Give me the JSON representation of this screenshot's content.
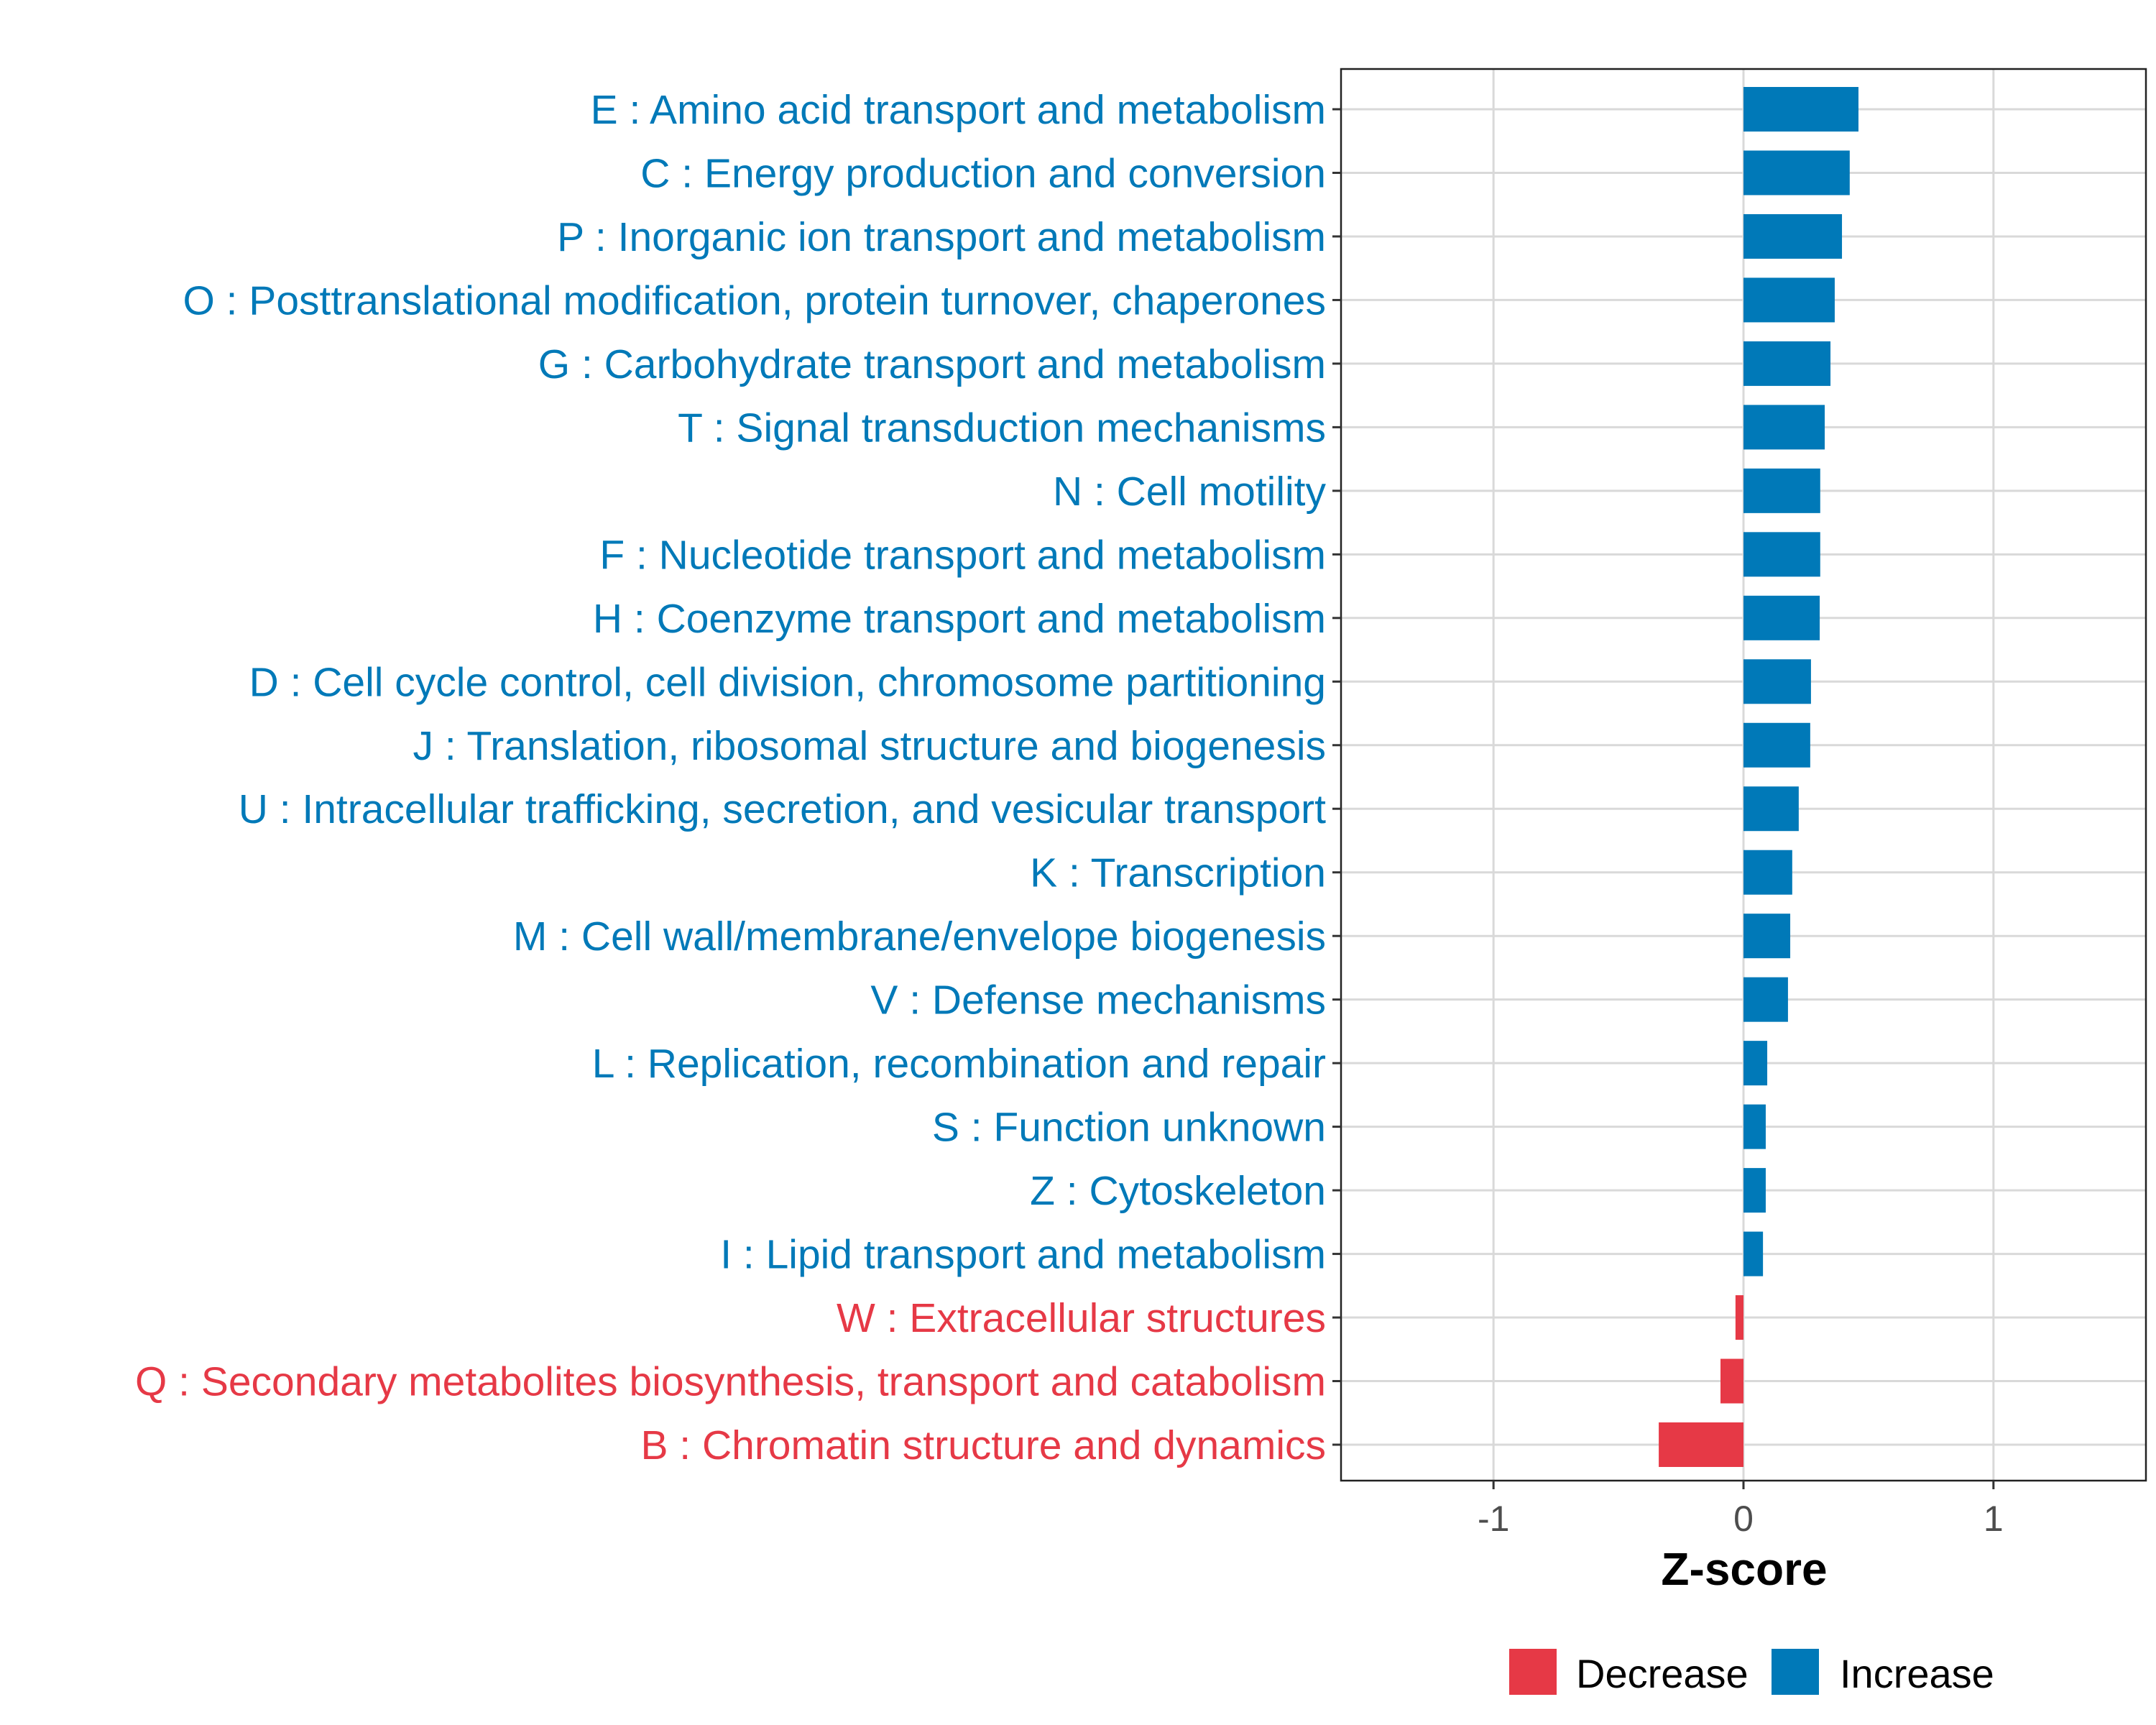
{
  "chart_data": {
    "type": "bar",
    "orientation": "horizontal",
    "title": "",
    "xlabel": "Z-score",
    "ylabel": "",
    "xlim": [
      -1.61,
      1.61
    ],
    "xticks": [
      -1,
      0,
      1
    ],
    "xtick_labels": [
      "-1",
      "0",
      "1"
    ],
    "grid": true,
    "legend_position": "bottom",
    "colors": {
      "Decrease": "#E63946",
      "Increase": "#0079B8"
    },
    "legend": [
      "Decrease",
      "Increase"
    ],
    "categories": [
      "E : Amino acid transport and metabolism",
      "C : Energy production and conversion",
      "P : Inorganic ion transport and metabolism",
      "O : Posttranslational modification, protein turnover, chaperones",
      "G : Carbohydrate transport and metabolism",
      "T : Signal transduction mechanisms",
      "N : Cell motility",
      "F : Nucleotide transport and metabolism",
      "H : Coenzyme transport and metabolism",
      "D : Cell cycle control, cell division, chromosome partitioning",
      "J : Translation, ribosomal structure and biogenesis",
      "U : Intracellular trafficking, secretion, and vesicular transport",
      "K : Transcription",
      "M : Cell wall/membrane/envelope biogenesis",
      "V : Defense mechanisms",
      "L : Replication, recombination and repair",
      "S : Function unknown",
      "Z : Cytoskeleton",
      "I : Lipid transport and metabolism",
      "W : Extracellular structures",
      "Q : Secondary metabolites biosynthesis, transport and catabolism",
      "B : Chromatin structure and dynamics"
    ],
    "values": [
      0.46,
      0.425,
      0.394,
      0.365,
      0.348,
      0.325,
      0.307,
      0.307,
      0.305,
      0.27,
      0.267,
      0.221,
      0.195,
      0.187,
      0.178,
      0.095,
      0.089,
      0.089,
      0.078,
      -0.032,
      -0.092,
      -0.339
    ]
  }
}
